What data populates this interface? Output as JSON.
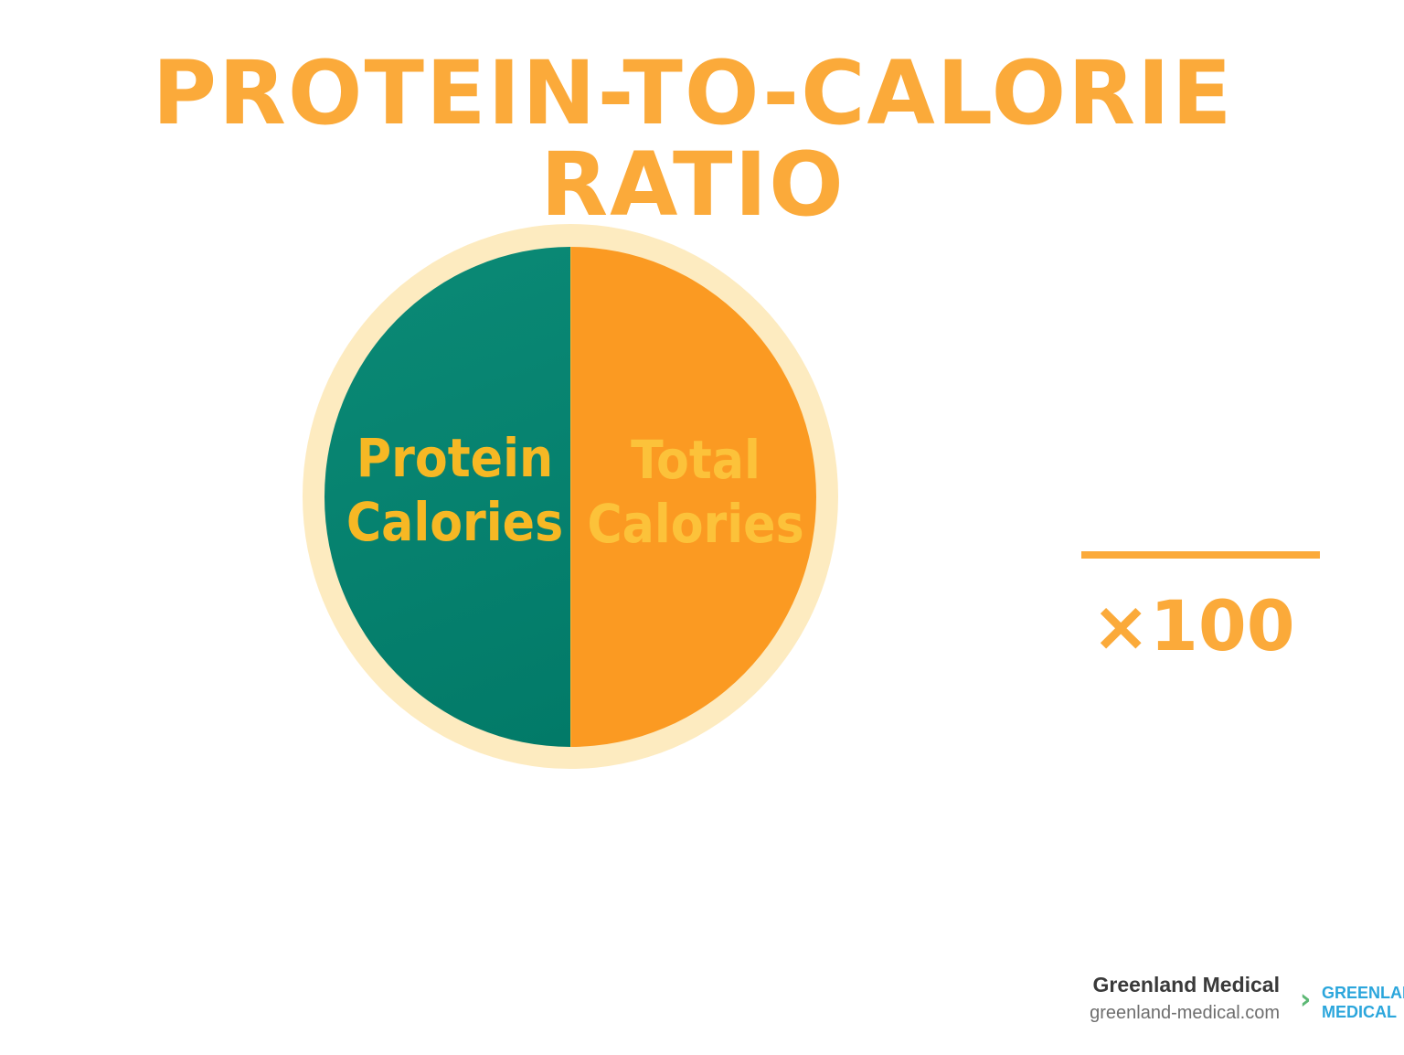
{
  "title": "PROTEIN-TO-CALORIE RATIO",
  "diagram": {
    "left_label_line1": "Protein",
    "left_label_line2": "Calories",
    "right_label_line1": "Total",
    "right_label_line2": "Calories",
    "multiplier": "×100"
  },
  "colors": {
    "accent": "#FBAA3A",
    "teal": "#05806C",
    "orange": "#FB9A22",
    "ring": "#FDEBC0"
  },
  "footer": {
    "brand_name": "Greenland Medical",
    "brand_url": "greenland-medical.com",
    "logo_line1": "GREENLAND",
    "logo_line2": "MEDICAL"
  }
}
